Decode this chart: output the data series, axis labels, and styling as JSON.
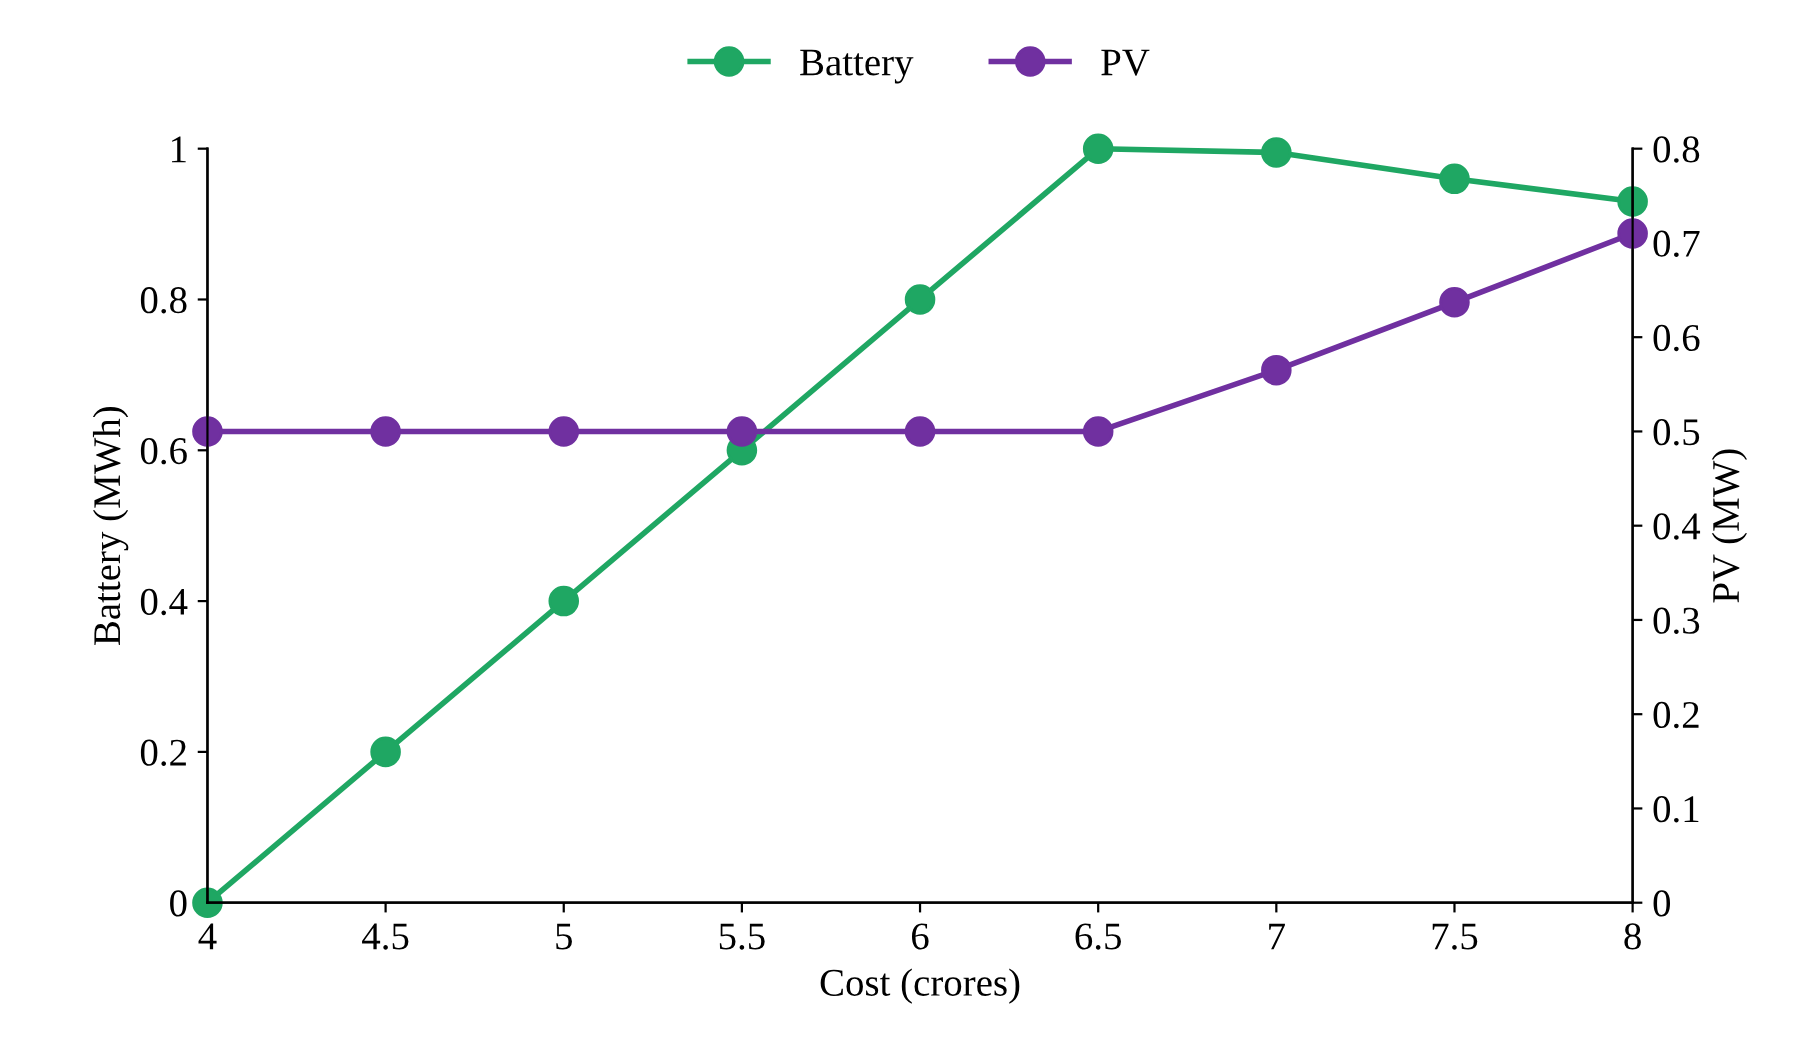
{
  "chart_data": {
    "type": "line",
    "xlabel": "Cost (crores)",
    "ylabel": "Battery (MWh)",
    "y2label": "PV (MW)",
    "x": [
      4,
      4.5,
      5,
      5.5,
      6,
      6.5,
      7,
      7.5,
      8
    ],
    "series": [
      {
        "name": "Battery",
        "color": "#1fa763",
        "values": [
          0,
          0.2,
          0.4,
          0.6,
          0.8,
          1.0,
          0.995,
          0.96,
          0.93
        ]
      },
      {
        "name": "PV",
        "color": "#7030a0",
        "axis": "y2",
        "values": [
          0.5,
          0.5,
          0.5,
          0.5,
          0.5,
          0.5,
          0.565,
          0.637,
          0.71
        ]
      }
    ],
    "xlim": [
      4,
      8
    ],
    "xticks": [
      4,
      4.5,
      5,
      5.5,
      6,
      6.5,
      7,
      7.5,
      8
    ],
    "ylim": [
      0,
      1
    ],
    "yticks": [
      0,
      0.2,
      0.4,
      0.6,
      0.8,
      1
    ],
    "y2lim": [
      0,
      0.8
    ],
    "y2ticks": [
      0,
      0.1,
      0.2,
      0.3,
      0.4,
      0.5,
      0.6,
      0.7,
      0.8
    ],
    "grid": false,
    "legend": "top",
    "marker": "circle",
    "line_style": "solid"
  }
}
